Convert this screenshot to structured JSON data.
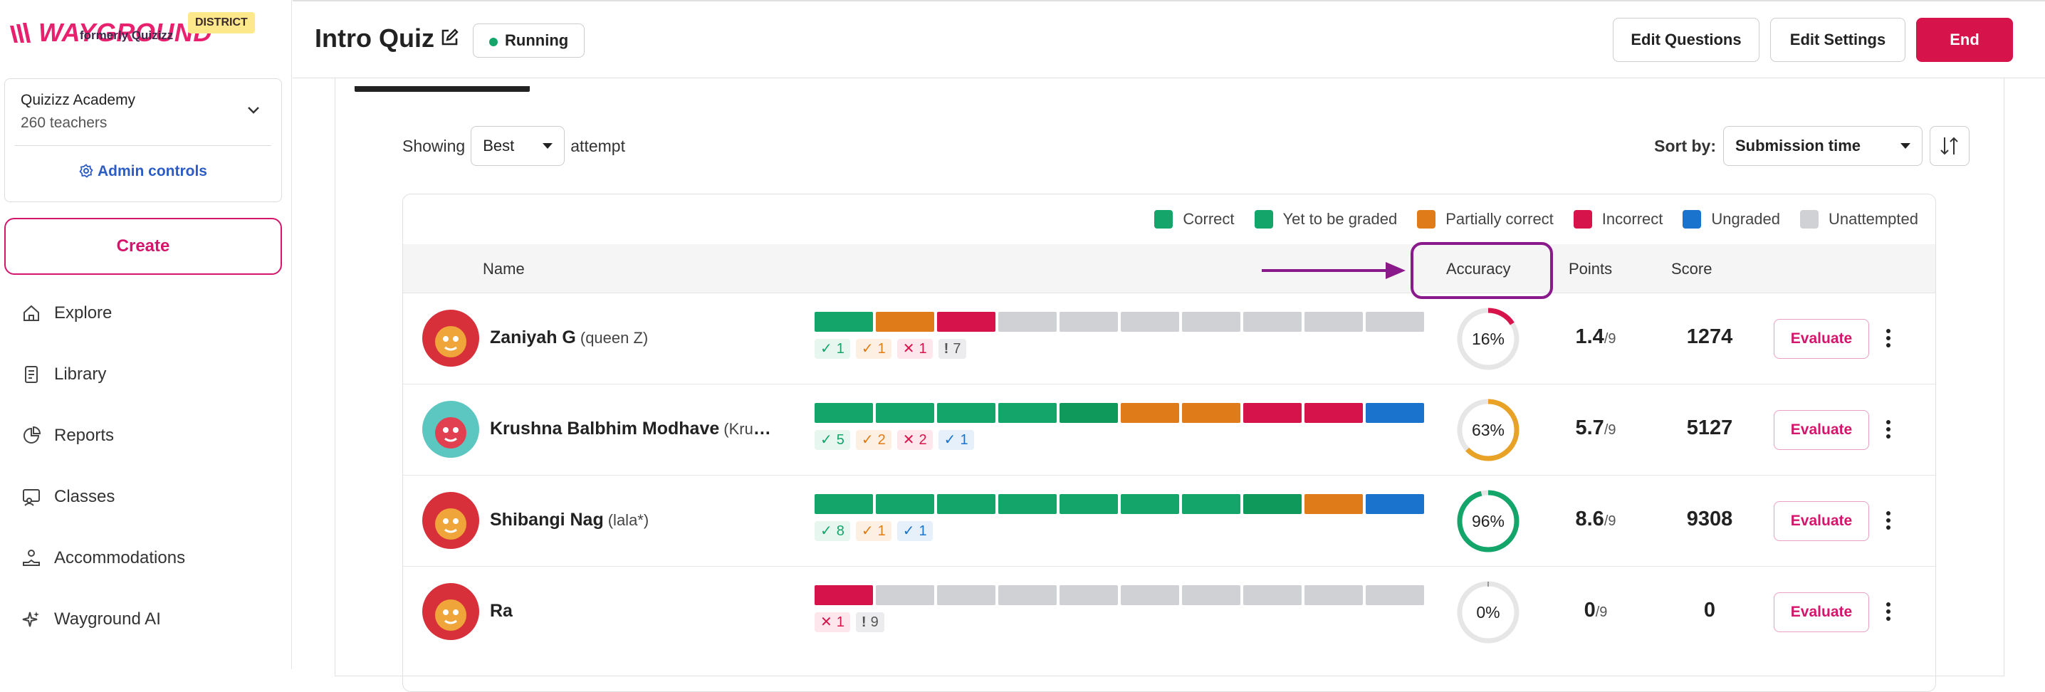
{
  "sidebar": {
    "logo_text": "WAYGROUND",
    "logo_sub": "formerly Quizizz",
    "district_badge": "DISTRICT",
    "org_name": "Quizizz Academy",
    "org_count": "260 teachers",
    "admin_label": "Admin controls",
    "create_label": "Create",
    "nav": [
      {
        "label": "Explore",
        "icon": "home-icon"
      },
      {
        "label": "Library",
        "icon": "library-icon"
      },
      {
        "label": "Reports",
        "icon": "reports-icon"
      },
      {
        "label": "Classes",
        "icon": "classes-icon"
      },
      {
        "label": "Accommodations",
        "icon": "accommodations-icon"
      },
      {
        "label": "Wayground AI",
        "icon": "sparkle-icon"
      }
    ]
  },
  "header": {
    "title": "Intro Quiz",
    "status": "Running",
    "edit_questions": "Edit Questions",
    "edit_settings": "Edit Settings",
    "end": "End"
  },
  "controls": {
    "showing": "Showing",
    "attempt_value": "Best",
    "attempt_suffix": "attempt",
    "sort_label": "Sort by:",
    "sort_value": "Submission time"
  },
  "legend": [
    {
      "label": "Correct",
      "color": "#13a56a"
    },
    {
      "label": "Yet to be graded",
      "color": "#13a56a"
    },
    {
      "label": "Partially correct",
      "color": "#e07b1a"
    },
    {
      "label": "Incorrect",
      "color": "#d6134a"
    },
    {
      "label": "Ungraded",
      "color": "#1a73cc"
    },
    {
      "label": "Unattempted",
      "color": "#cfd1d4"
    }
  ],
  "table": {
    "col_name": "Name",
    "col_accuracy": "Accuracy",
    "col_points": "Points",
    "col_score": "Score",
    "evaluate_label": "Evaluate",
    "rows": [
      {
        "name": "Zaniyah G",
        "nick": "(queen Z)",
        "segments": [
          "c",
          "p",
          "i",
          "u",
          "u",
          "u",
          "u",
          "u",
          "u",
          "u"
        ],
        "chips": [
          {
            "g": "✓",
            "n": "1",
            "t": "c"
          },
          {
            "g": "✓",
            "n": "1",
            "t": "p"
          },
          {
            "g": "✕",
            "n": "1",
            "t": "i"
          },
          {
            "g": "!",
            "n": "7",
            "t": "u"
          }
        ],
        "accuracy": 16,
        "accuracy_text": "16%",
        "points": "1.4",
        "points_den": "/9",
        "score": "1274",
        "ring_color": "#d6134a"
      },
      {
        "name": "Krushna Balbhim Modhave",
        "nick": "(Krushna)",
        "segments": [
          "c",
          "c",
          "c",
          "c",
          "y",
          "p",
          "p",
          "i",
          "i",
          "g"
        ],
        "chips": [
          {
            "g": "✓",
            "n": "5",
            "t": "c"
          },
          {
            "g": "✓",
            "n": "2",
            "t": "p"
          },
          {
            "g": "✕",
            "n": "2",
            "t": "i"
          },
          {
            "g": "✓",
            "n": "1",
            "t": "g"
          }
        ],
        "accuracy": 63,
        "accuracy_text": "63%",
        "points": "5.7",
        "points_den": "/9",
        "score": "5127",
        "ring_color": "#e8a326"
      },
      {
        "name": "Shibangi Nag",
        "nick": "(lala*)",
        "segments": [
          "c",
          "c",
          "c",
          "c",
          "c",
          "c",
          "c",
          "y",
          "p",
          "g"
        ],
        "chips": [
          {
            "g": "✓",
            "n": "8",
            "t": "c"
          },
          {
            "g": "✓",
            "n": "1",
            "t": "p"
          },
          {
            "g": "✓",
            "n": "1",
            "t": "g"
          }
        ],
        "accuracy": 96,
        "accuracy_text": "96%",
        "points": "8.6",
        "points_den": "/9",
        "score": "9308",
        "ring_color": "#13a56a"
      },
      {
        "name": "Ra",
        "nick": "",
        "segments": [
          "i",
          "u",
          "u",
          "u",
          "u",
          "u",
          "u",
          "u",
          "u",
          "u"
        ],
        "chips": [
          {
            "g": "✕",
            "n": "1",
            "t": "i"
          },
          {
            "g": "!",
            "n": "9",
            "t": "u"
          }
        ],
        "accuracy": 0,
        "accuracy_text": "0%",
        "points": "0",
        "points_den": "/9",
        "score": "0",
        "ring_color": "#cfd1d4"
      }
    ]
  }
}
